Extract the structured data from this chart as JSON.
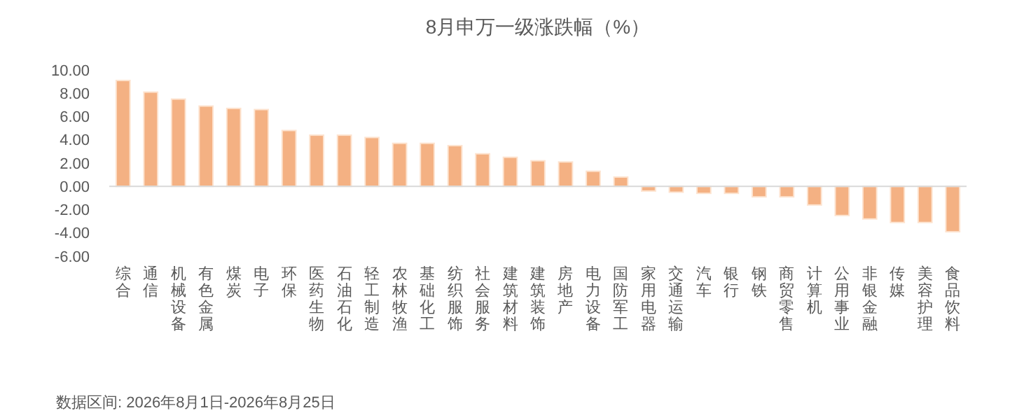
{
  "chart_data": {
    "type": "bar",
    "title": "8月申万一级涨跌幅（%）",
    "categories": [
      "综合",
      "通信",
      "机械设备",
      "有色金属",
      "煤炭",
      "电子",
      "环保",
      "医药生物",
      "石油石化",
      "轻工制造",
      "农林牧渔",
      "基础化工",
      "纺织服饰",
      "社会服务",
      "建筑材料",
      "建筑装饰",
      "房地产",
      "电力设备",
      "国防军工",
      "家用电器",
      "交通运输",
      "汽车",
      "银行",
      "钢铁",
      "商贸零售",
      "计算机",
      "公用事业",
      "非银金融",
      "传媒",
      "美容护理",
      "食品饮料"
    ],
    "values": [
      9.1,
      8.1,
      7.5,
      6.9,
      6.7,
      6.6,
      4.8,
      4.4,
      4.4,
      4.2,
      3.7,
      3.7,
      3.5,
      2.8,
      2.5,
      2.2,
      2.1,
      1.3,
      0.8,
      -0.4,
      -0.5,
      -0.6,
      -0.6,
      -0.9,
      -0.9,
      -1.6,
      -2.5,
      -2.8,
      -3.1,
      -3.1,
      -3.9
    ],
    "color": "#f4b183",
    "ylim": [
      -6,
      10
    ],
    "yticks": [
      {
        "value": -6,
        "label": "-6.00"
      },
      {
        "value": -4,
        "label": "-4.00"
      },
      {
        "value": -2,
        "label": "-2.00"
      },
      {
        "value": 0,
        "label": "0.00"
      },
      {
        "value": 2,
        "label": "2.00"
      },
      {
        "value": 4,
        "label": "4.00"
      },
      {
        "value": 6,
        "label": "6.00"
      },
      {
        "value": 8,
        "label": "8.00"
      },
      {
        "value": 10,
        "label": "10.00"
      }
    ],
    "annotations": [
      "数据区间: 2026年8月1日-2026年8月25日"
    ]
  }
}
